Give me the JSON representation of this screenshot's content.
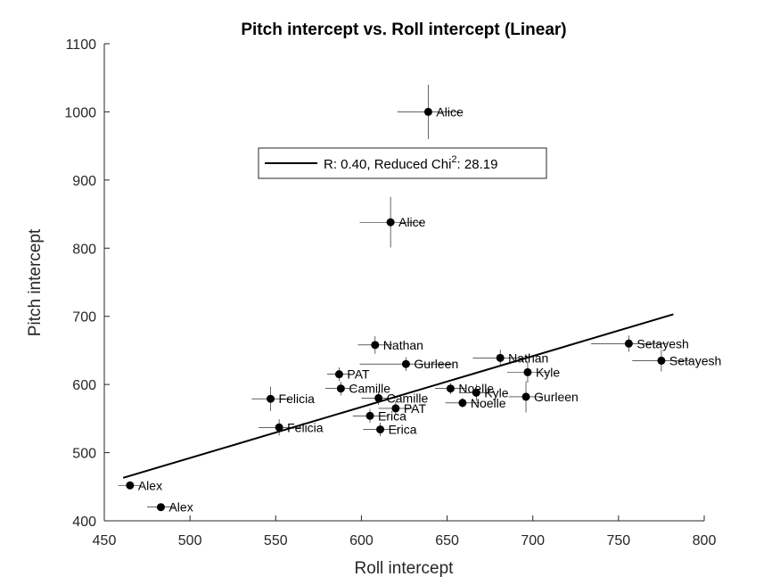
{
  "chart_data": {
    "type": "scatter",
    "title": "Pitch intercept vs. Roll intercept (Linear)",
    "xlabel": "Roll intercept",
    "ylabel": "Pitch intercept",
    "xlim": [
      450,
      800
    ],
    "ylim": [
      400,
      1100
    ],
    "xticks": [
      "450",
      "500",
      "550",
      "600",
      "650",
      "700",
      "750",
      "800"
    ],
    "yticks": [
      "400",
      "500",
      "600",
      "700",
      "800",
      "900",
      "1000",
      "1100"
    ],
    "grid": false,
    "legend": {
      "position": "upper-center",
      "line_label": "R: 0.40, Reduced Chi",
      "sup": "2",
      "value_label": ": 28.19"
    },
    "fit_line": {
      "x": [
        461,
        782
      ],
      "y": [
        463,
        703
      ]
    },
    "points": [
      {
        "label": "Alice",
        "x": 639,
        "y": 1000,
        "xerr": 18,
        "yerr": 40
      },
      {
        "label": "Alice",
        "x": 617,
        "y": 838,
        "xerr": 18,
        "yerr": 37
      },
      {
        "label": "Setayesh",
        "x": 756,
        "y": 660,
        "xerr": 22,
        "yerr": 12
      },
      {
        "label": "Setayesh",
        "x": 775,
        "y": 635,
        "xerr": 17,
        "yerr": 16
      },
      {
        "label": "Nathan",
        "x": 608,
        "y": 658,
        "xerr": 10,
        "yerr": 13
      },
      {
        "label": "Nathan",
        "x": 681,
        "y": 639,
        "xerr": 16,
        "yerr": 12
      },
      {
        "label": "Gurleen",
        "x": 626,
        "y": 630,
        "xerr": 27,
        "yerr": 10
      },
      {
        "label": "Gurleen",
        "x": 696,
        "y": 582,
        "xerr": 10,
        "yerr": 23
      },
      {
        "label": "Kyle",
        "x": 697,
        "y": 618,
        "xerr": 12,
        "yerr": 15
      },
      {
        "label": "Kyle",
        "x": 667,
        "y": 588,
        "xerr": 10,
        "yerr": 12
      },
      {
        "label": "PAT",
        "x": 587,
        "y": 615,
        "xerr": 7,
        "yerr": 10
      },
      {
        "label": "PAT",
        "x": 620,
        "y": 565,
        "xerr": 10,
        "yerr": 10
      },
      {
        "label": "Camille",
        "x": 588,
        "y": 594,
        "xerr": 9,
        "yerr": 10
      },
      {
        "label": "Camille",
        "x": 610,
        "y": 580,
        "xerr": 10,
        "yerr": 10
      },
      {
        "label": "Noelle",
        "x": 652,
        "y": 594,
        "xerr": 9,
        "yerr": 8
      },
      {
        "label": "Noelle",
        "x": 659,
        "y": 573,
        "xerr": 10,
        "yerr": 7
      },
      {
        "label": "Felicia",
        "x": 547,
        "y": 579,
        "xerr": 11,
        "yerr": 18
      },
      {
        "label": "Felicia",
        "x": 552,
        "y": 537,
        "xerr": 12,
        "yerr": 12
      },
      {
        "label": "Erica",
        "x": 605,
        "y": 554,
        "xerr": 10,
        "yerr": 10
      },
      {
        "label": "Erica",
        "x": 611,
        "y": 534,
        "xerr": 10,
        "yerr": 10
      },
      {
        "label": "Alex",
        "x": 465,
        "y": 452,
        "xerr": 7,
        "yerr": 5
      },
      {
        "label": "Alex",
        "x": 483,
        "y": 420,
        "xerr": 8,
        "yerr": 4
      }
    ]
  }
}
